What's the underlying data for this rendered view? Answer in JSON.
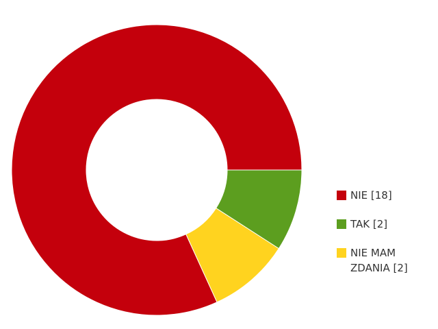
{
  "chart_data": {
    "type": "pie",
    "title": "",
    "slices": [
      {
        "label": "NIE [18]",
        "value": 18,
        "color": "#c4000c"
      },
      {
        "label": "TAK [2]",
        "value": 2,
        "color": "#5c9e1f"
      },
      {
        "label": "NIE MAM ZDANIA [2]",
        "value": 2,
        "color": "#ffd31f"
      }
    ],
    "legend_position": "right",
    "donut": true
  }
}
